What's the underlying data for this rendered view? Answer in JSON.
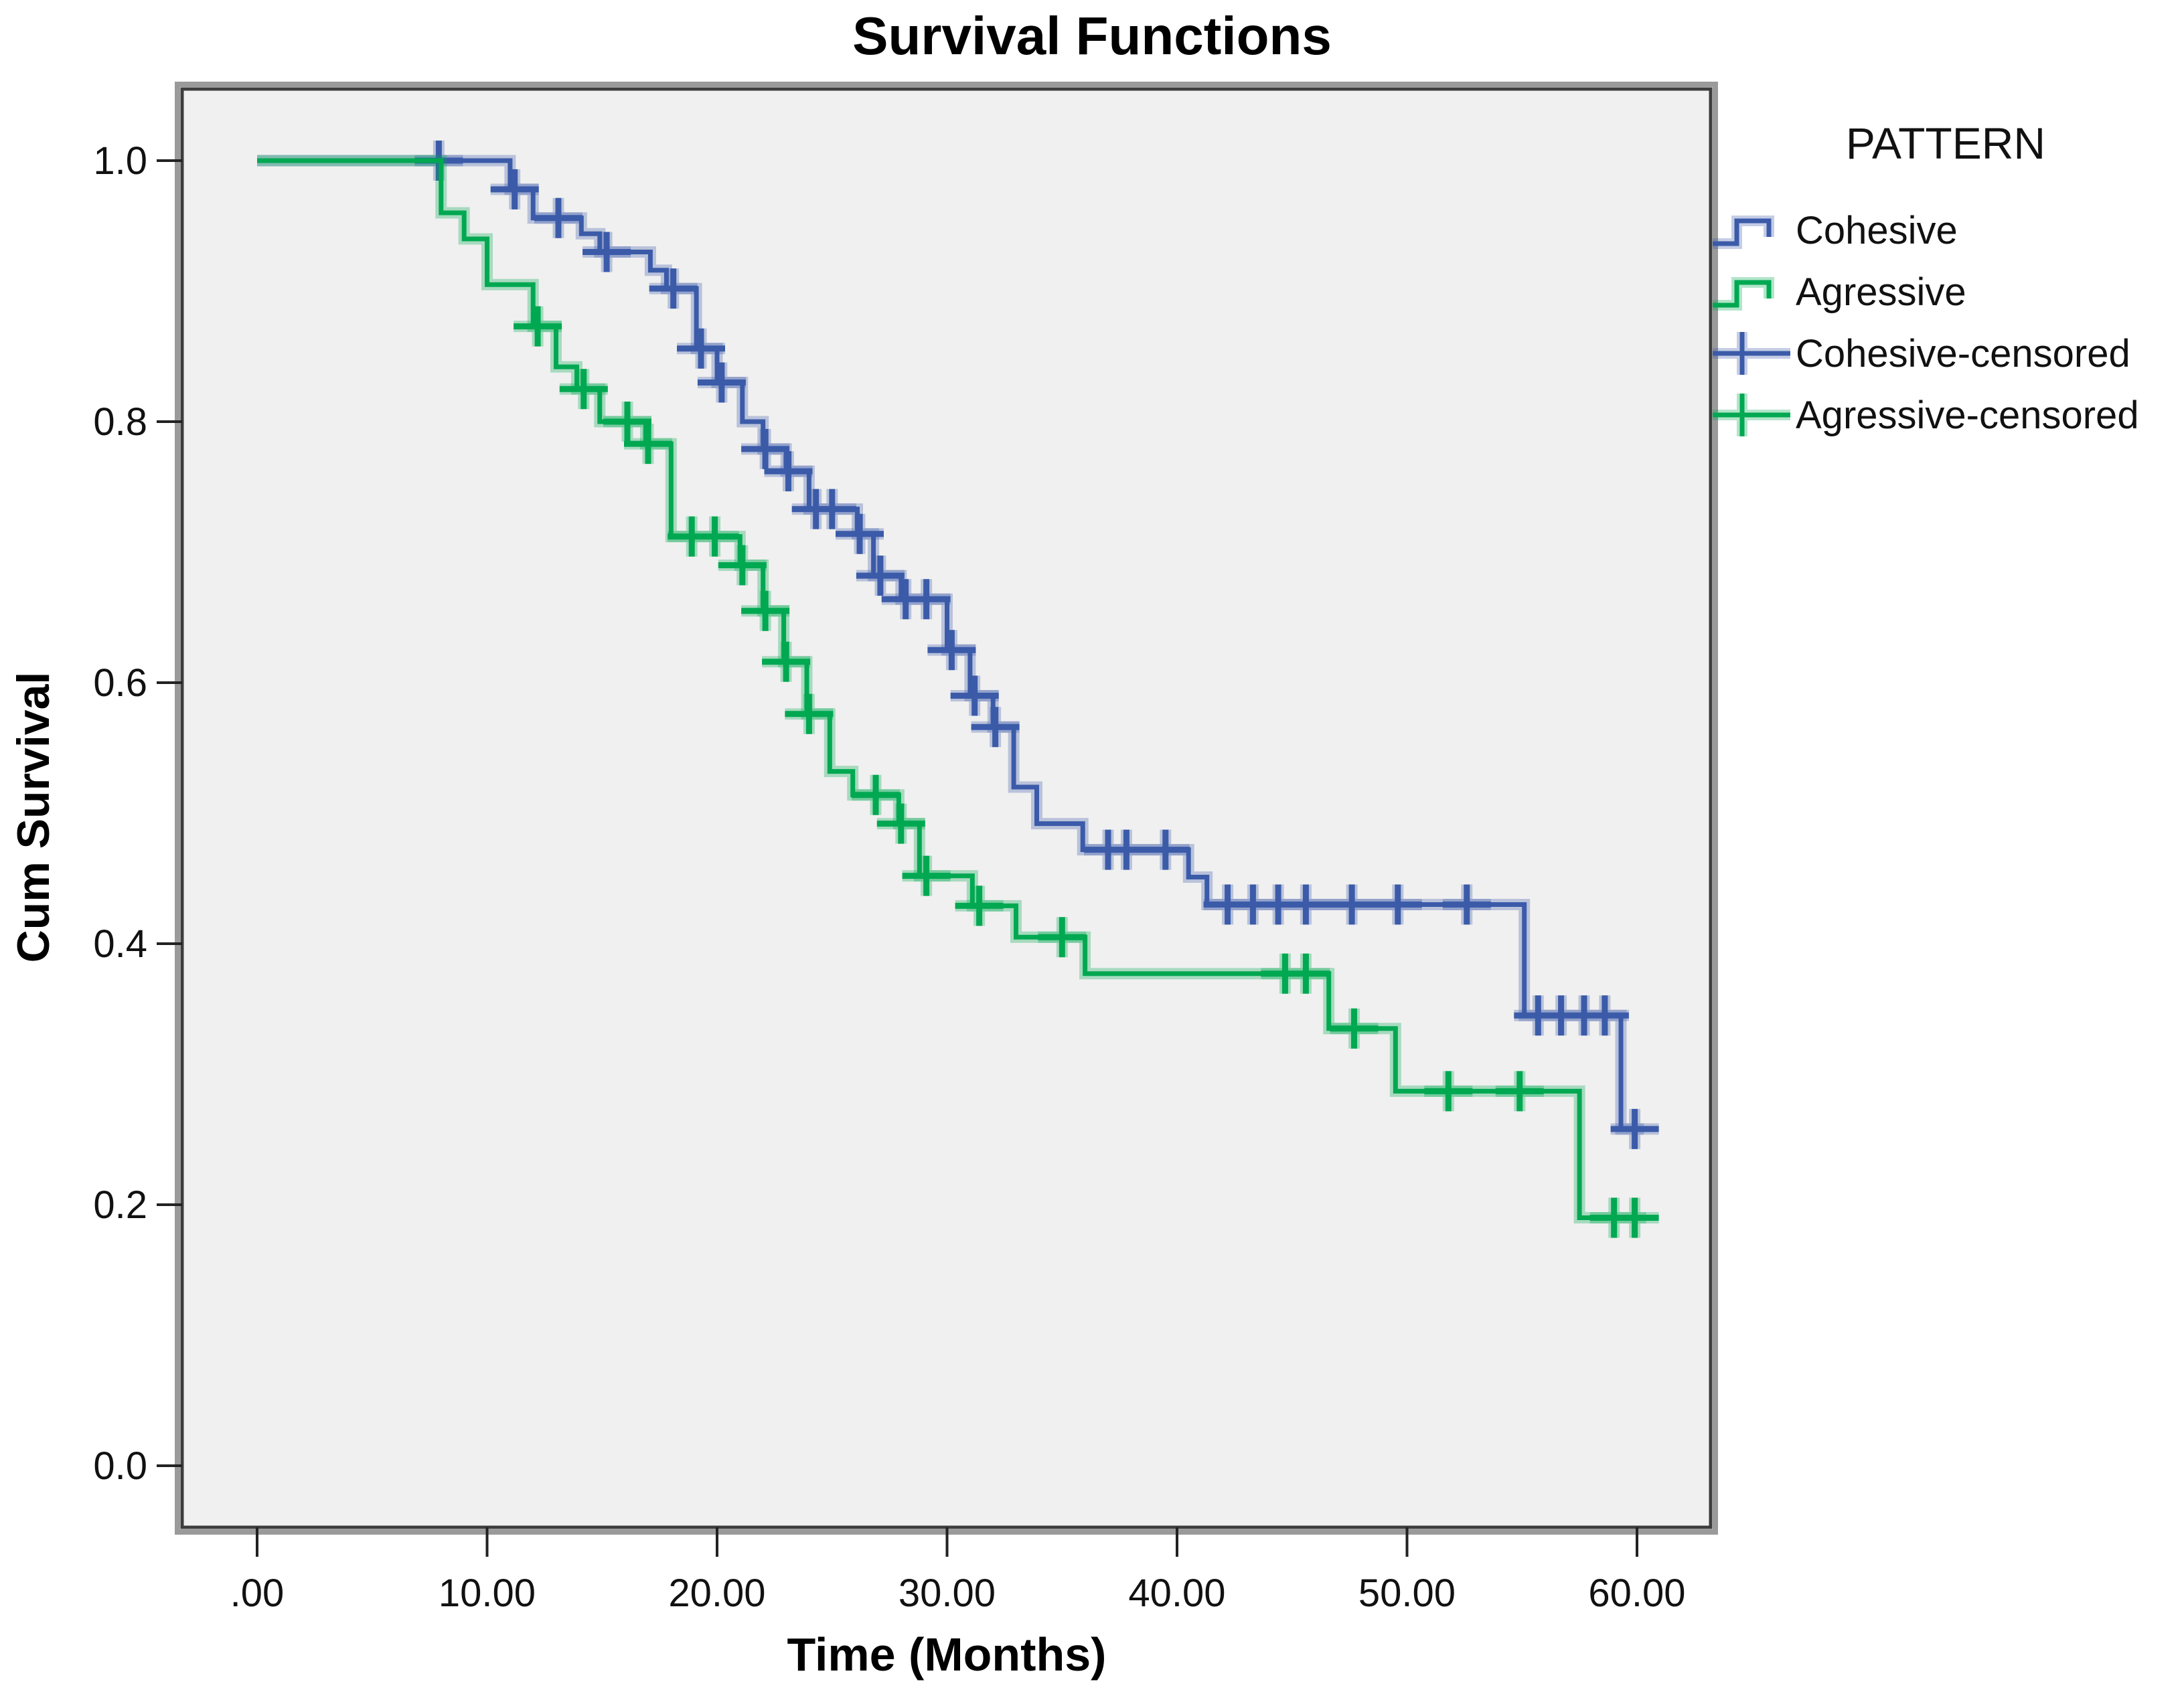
{
  "figure": {
    "title": "Survival Functions"
  },
  "axes": {
    "x": {
      "title": "Time (Months)",
      "tick_labels": [
        ".00",
        "10.00",
        "20.00",
        "30.00",
        "40.00",
        "50.00",
        "60.00"
      ],
      "tick_values": [
        0,
        10,
        20,
        30,
        40,
        50,
        60
      ]
    },
    "y": {
      "title": "Cum Survival",
      "tick_labels": [
        "1.0",
        "0.8",
        "0.6",
        "0.4",
        "0.2",
        "0.0"
      ],
      "tick_values": [
        1.0,
        0.8,
        0.6,
        0.4,
        0.2,
        0.0
      ]
    }
  },
  "legend": {
    "title": "PATTERN",
    "items": [
      {
        "label": "Cohesive",
        "series": "cohesive",
        "kind": "line"
      },
      {
        "label": "Agressive",
        "series": "agressive",
        "kind": "line"
      },
      {
        "label": "Cohesive-censored",
        "series": "cohesive",
        "kind": "censor"
      },
      {
        "label": "Agressive-censored",
        "series": "agressive",
        "kind": "censor"
      }
    ]
  },
  "colors": {
    "cohesive": "#3b5ba9",
    "agressive": "#00a851",
    "plot_bg": "#f0f0f0",
    "frame": "#3d3d3d",
    "frame_bevel": "#9a9a9a",
    "text": "#111111"
  },
  "chart_data": {
    "type": "line",
    "subtype": "kaplan-meier-step",
    "title": "Survival Functions",
    "xlabel": "Time (Months)",
    "ylabel": "Cum Survival",
    "xlim": [
      0,
      60
    ],
    "ylim": [
      0,
      1
    ],
    "grid": false,
    "legend_position": "right",
    "legend_title": "PATTERN",
    "series": [
      {
        "name": "Cohesive",
        "color": "#3b5ba9",
        "start": {
          "t": 0,
          "s": 1.0
        },
        "steps": [
          [
            11,
            0.978
          ],
          [
            12,
            0.956
          ],
          [
            14.1,
            0.944
          ],
          [
            14.9,
            0.93
          ],
          [
            17.1,
            0.916
          ],
          [
            17.8,
            0.902
          ],
          [
            19.1,
            0.856
          ],
          [
            20,
            0.83
          ],
          [
            21.1,
            0.8
          ],
          [
            22,
            0.779
          ],
          [
            23,
            0.762
          ],
          [
            24,
            0.733
          ],
          [
            26.1,
            0.714
          ],
          [
            26.8,
            0.682
          ],
          [
            28,
            0.664
          ],
          [
            30,
            0.625
          ],
          [
            31,
            0.59
          ],
          [
            32,
            0.566
          ],
          [
            32.9,
            0.52
          ],
          [
            33.9,
            0.492
          ],
          [
            35.9,
            0.472
          ],
          [
            40.5,
            0.451
          ],
          [
            41.3,
            0.43
          ],
          [
            55.1,
            0.345
          ],
          [
            59.3,
            0.258
          ]
        ],
        "end_t": 60.3,
        "censored": [
          [
            7.9,
            1.0
          ],
          [
            11.2,
            0.978
          ],
          [
            13.1,
            0.956
          ],
          [
            15.2,
            0.93
          ],
          [
            18.1,
            0.902
          ],
          [
            19.3,
            0.856
          ],
          [
            20.2,
            0.83
          ],
          [
            22.1,
            0.779
          ],
          [
            23.1,
            0.762
          ],
          [
            24.3,
            0.733
          ],
          [
            25,
            0.733
          ],
          [
            26.2,
            0.714
          ],
          [
            27.1,
            0.682
          ],
          [
            28.2,
            0.664
          ],
          [
            29.1,
            0.664
          ],
          [
            30.2,
            0.625
          ],
          [
            31.2,
            0.59
          ],
          [
            32.1,
            0.566
          ],
          [
            37,
            0.472
          ],
          [
            37.8,
            0.472
          ],
          [
            39.5,
            0.472
          ],
          [
            42.2,
            0.43
          ],
          [
            43.3,
            0.43
          ],
          [
            44.4,
            0.43
          ],
          [
            45.6,
            0.43
          ],
          [
            47.6,
            0.43
          ],
          [
            49.6,
            0.43
          ],
          [
            52.6,
            0.43
          ],
          [
            55.7,
            0.345
          ],
          [
            56.7,
            0.345
          ],
          [
            57.7,
            0.345
          ],
          [
            58.6,
            0.345
          ],
          [
            59.9,
            0.258
          ]
        ]
      },
      {
        "name": "Agressive",
        "color": "#00a851",
        "start": {
          "t": 0,
          "s": 1.0
        },
        "steps": [
          [
            8,
            0.96
          ],
          [
            9,
            0.94
          ],
          [
            10,
            0.905
          ],
          [
            12,
            0.873
          ],
          [
            13,
            0.842
          ],
          [
            13.9,
            0.825
          ],
          [
            14.9,
            0.8
          ],
          [
            16.9,
            0.783
          ],
          [
            18,
            0.712
          ],
          [
            21,
            0.69
          ],
          [
            22,
            0.655
          ],
          [
            22.9,
            0.616
          ],
          [
            23.9,
            0.576
          ],
          [
            24.9,
            0.532
          ],
          [
            25.9,
            0.514
          ],
          [
            27.9,
            0.492
          ],
          [
            28.8,
            0.452
          ],
          [
            31.1,
            0.429
          ],
          [
            33,
            0.405
          ],
          [
            36,
            0.377
          ],
          [
            46.6,
            0.335
          ],
          [
            49.5,
            0.287
          ],
          [
            57.5,
            0.19
          ]
        ],
        "end_t": 60.4,
        "censored": [
          [
            12.2,
            0.873
          ],
          [
            14.2,
            0.825
          ],
          [
            16.1,
            0.8
          ],
          [
            17,
            0.783
          ],
          [
            18.9,
            0.712
          ],
          [
            19.9,
            0.712
          ],
          [
            21.1,
            0.69
          ],
          [
            22.1,
            0.655
          ],
          [
            23,
            0.616
          ],
          [
            24,
            0.576
          ],
          [
            26.9,
            0.514
          ],
          [
            28,
            0.492
          ],
          [
            29.1,
            0.452
          ],
          [
            31.4,
            0.429
          ],
          [
            35,
            0.405
          ],
          [
            44.7,
            0.377
          ],
          [
            45.6,
            0.377
          ],
          [
            47.7,
            0.335
          ],
          [
            51.8,
            0.287
          ],
          [
            54.9,
            0.287
          ],
          [
            59,
            0.19
          ],
          [
            59.9,
            0.19
          ]
        ]
      }
    ]
  }
}
